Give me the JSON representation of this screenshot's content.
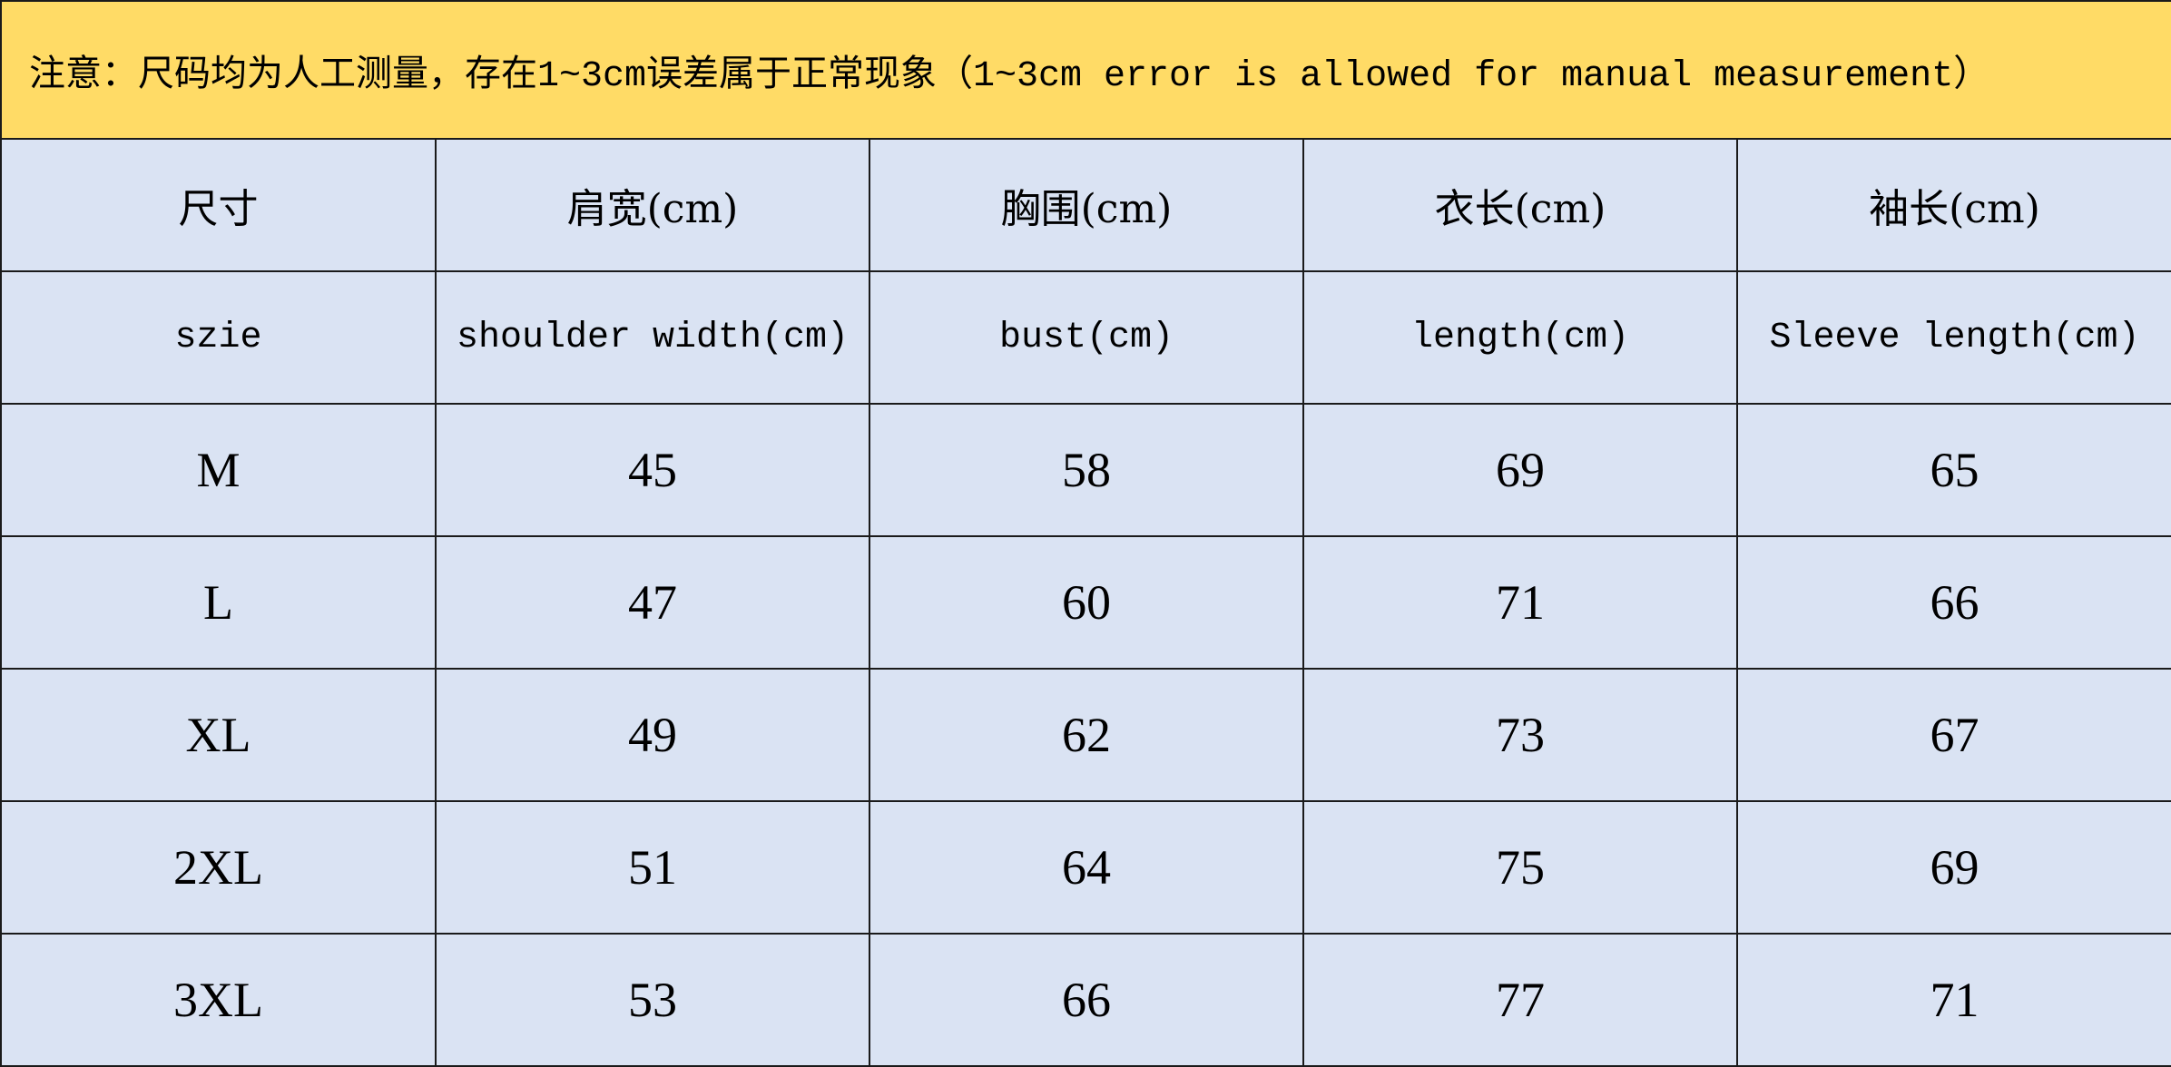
{
  "notice": "注意：尺码均为人工测量，存在1~3cm误差属于正常现象（1~3cm error is allowed for manual measurement）",
  "colors": {
    "notice_bg": "#FFDB66",
    "table_bg": "#DAE3F3"
  },
  "headers_cn": [
    "尺寸",
    "肩宽(cm)",
    "胸围(cm)",
    "衣长(cm)",
    "袖长(cm)"
  ],
  "headers_en": [
    "szie",
    "shoulder width(cm)",
    "bust(cm)",
    "length(cm)",
    "Sleeve length(cm)"
  ],
  "rows": [
    [
      "M",
      "45",
      "58",
      "69",
      "65"
    ],
    [
      "L",
      "47",
      "60",
      "71",
      "66"
    ],
    [
      "XL",
      "49",
      "62",
      "73",
      "67"
    ],
    [
      "2XL",
      "51",
      "64",
      "75",
      "69"
    ],
    [
      "3XL",
      "53",
      "66",
      "77",
      "71"
    ]
  ]
}
